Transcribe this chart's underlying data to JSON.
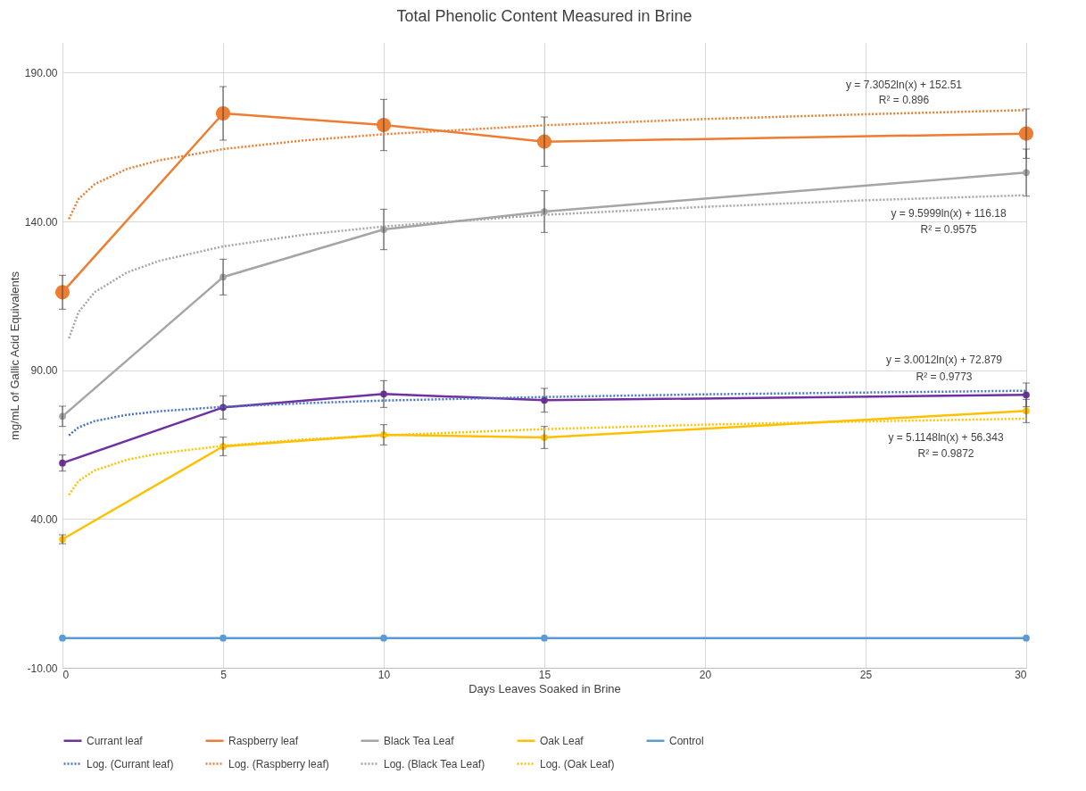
{
  "chart_data": {
    "type": "line",
    "title": "Total Phenolic Content Measured in Brine",
    "xlabel": "Days Leaves Soaked in Brine",
    "ylabel": "mg/mL of Gallic Acid Equivalents",
    "x": [
      0,
      5,
      10,
      15,
      30
    ],
    "xlim": [
      0,
      30
    ],
    "xticks": [
      0,
      5,
      10,
      15,
      20,
      25,
      30
    ],
    "ylim": [
      -10,
      200
    ],
    "yticks": [
      {
        "value": -10,
        "label": "-10.00"
      },
      {
        "value": 40,
        "label": "40.00"
      },
      {
        "value": 90,
        "label": "90.00"
      },
      {
        "value": 140,
        "label": "140.00"
      },
      {
        "value": 190,
        "label": "190.00"
      }
    ],
    "grid": true,
    "legend": "bottom",
    "marker": "circle",
    "line_style": "solid",
    "series": [
      {
        "name": "Currant leaf",
        "color": "#7030a0",
        "values": [
          58.8,
          77.5,
          82.0,
          79.9,
          81.7
        ],
        "errors": [
          2.7,
          3.9,
          4.5,
          4.0,
          4.0
        ]
      },
      {
        "name": "Raspberry leaf",
        "color": "#ed7d31",
        "values": [
          116.2,
          176.3,
          172.4,
          166.8,
          169.5
        ],
        "errors": [
          5.7,
          9.0,
          8.6,
          8.3,
          8.3
        ]
      },
      {
        "name": "Black Tea Leaf",
        "color": "#a5a5a5",
        "values": [
          74.5,
          121.3,
          137.3,
          143.3,
          156.4
        ],
        "errors": [
          3.4,
          6.0,
          6.8,
          7.0,
          7.9
        ]
      },
      {
        "name": "Oak Leaf",
        "color": "#ffc000",
        "values": [
          33.2,
          64.4,
          68.3,
          67.4,
          76.3
        ],
        "errors": [
          1.5,
          3.1,
          3.4,
          3.7,
          3.9
        ]
      },
      {
        "name": "Control",
        "color": "#5b9bd5",
        "values": [
          0,
          0,
          0,
          0,
          0
        ]
      },
      {
        "name": "Log. (Currant leaf)",
        "color": "#4472c4",
        "type": "line",
        "line_style": "dotted",
        "marker": "none",
        "x": [
          0.2,
          0.5,
          1,
          2,
          3,
          5,
          7.5,
          10,
          15,
          20,
          25,
          30
        ],
        "values": [
          68.1,
          70.8,
          72.9,
          75.0,
          76.2,
          77.7,
          78.9,
          79.8,
          81.0,
          81.9,
          82.5,
          83.1
        ]
      },
      {
        "name": "Log. (Raspberry leaf)",
        "color": "#ed7d31",
        "type": "line",
        "line_style": "dotted",
        "marker": "none",
        "x": [
          0.2,
          0.5,
          1,
          2,
          3,
          5,
          7.5,
          10,
          15,
          20,
          25,
          30
        ],
        "values": [
          140.8,
          147.5,
          152.5,
          157.6,
          160.5,
          164.3,
          167.2,
          169.3,
          172.3,
          174.4,
          176.0,
          177.4
        ]
      },
      {
        "name": "Log. (Black Tea Leaf)",
        "color": "#a5a5a5",
        "type": "line",
        "line_style": "dotted",
        "marker": "none",
        "x": [
          0.2,
          0.5,
          1,
          2,
          3,
          5,
          7.5,
          10,
          15,
          20,
          25,
          30
        ],
        "values": [
          100.7,
          109.5,
          116.2,
          122.8,
          126.7,
          131.6,
          135.5,
          138.3,
          142.2,
          144.9,
          147.1,
          148.8
        ]
      },
      {
        "name": "Log. (Oak Leaf)",
        "color": "#ffc000",
        "type": "line",
        "line_style": "dotted",
        "marker": "none",
        "x": [
          0.2,
          0.5,
          1,
          2,
          3,
          5,
          7.5,
          10,
          15,
          20,
          25,
          30
        ],
        "values": [
          48.1,
          52.8,
          56.3,
          59.9,
          62.0,
          64.6,
          66.7,
          68.1,
          70.2,
          71.7,
          72.8,
          73.7
        ]
      }
    ],
    "annotations": [
      "y = 7.3052ln(x) + 152.51",
      "R² = 0.896",
      "y = 9.5999ln(x) + 116.18",
      "R² = 0.9575",
      "y = 3.0012ln(x) + 72.879",
      "R² = 0.9773",
      "y = 5.1148ln(x) + 56.343",
      "R² = 0.9872"
    ]
  }
}
